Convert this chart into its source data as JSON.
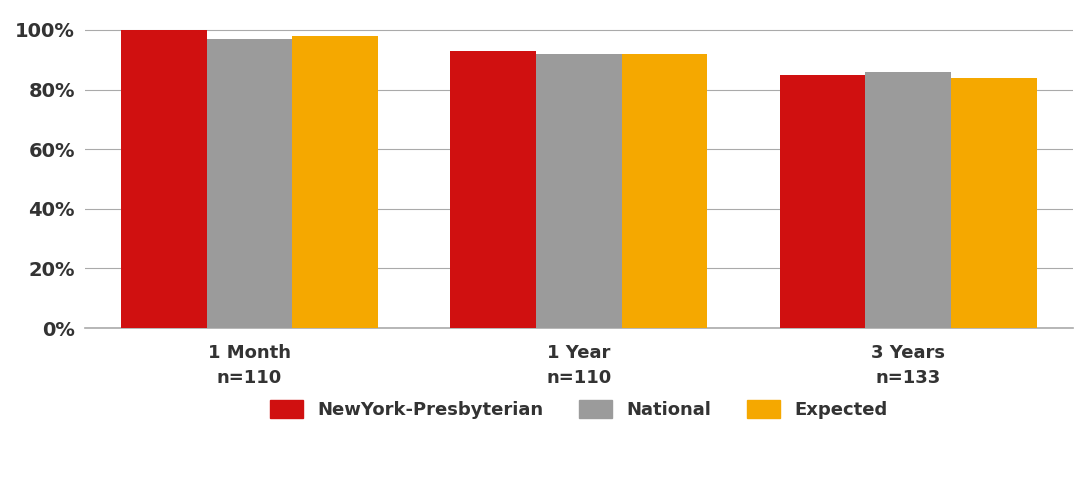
{
  "categories": [
    "1 Month\nn=110",
    "1 Year\nn=110",
    "3 Years\nn=133"
  ],
  "series": {
    "NewYork-Presbyterian": [
      100,
      93,
      85
    ],
    "National": [
      97,
      92,
      86
    ],
    "Expected": [
      98,
      92,
      84
    ]
  },
  "colors": {
    "NewYork-Presbyterian": "#D01010",
    "National": "#9B9B9B",
    "Expected": "#F5A800"
  },
  "ylim": [
    0,
    105
  ],
  "yticks": [
    0,
    20,
    40,
    60,
    80,
    100
  ],
  "ytick_labels": [
    "0%",
    "20%",
    "40%",
    "60%",
    "80%",
    "100%"
  ],
  "background_color": "#FFFFFF",
  "text_color": "#333333",
  "grid_color": "#AAAAAA",
  "bar_width": 0.26,
  "legend_labels": [
    "NewYork-Presbyterian",
    "National",
    "Expected"
  ]
}
